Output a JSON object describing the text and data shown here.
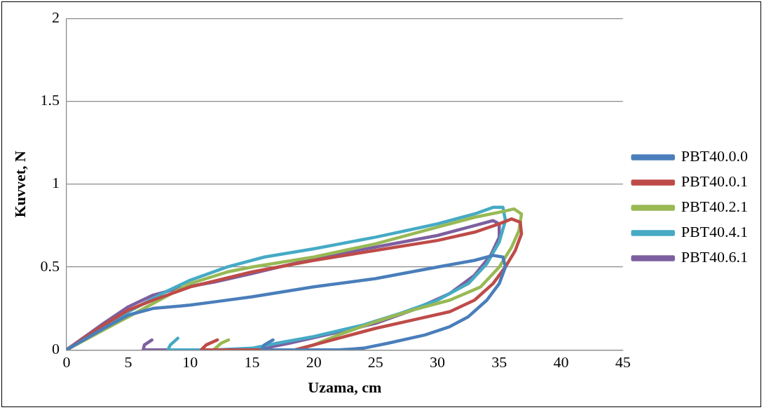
{
  "chart_data": {
    "type": "line",
    "xlabel": "Uzama, cm",
    "ylabel": "Kuvvet, N",
    "xlim": [
      0,
      45
    ],
    "xticks": [
      0,
      5,
      10,
      15,
      20,
      25,
      30,
      35,
      40,
      45
    ],
    "ylim": [
      0,
      2
    ],
    "yticks": [
      0,
      0.5,
      1,
      1.5,
      2
    ],
    "grid": "y",
    "legend": "right",
    "marker": "none",
    "line_style": "solid",
    "series": [
      {
        "name": "PBT40.0.0",
        "color": "#4a7ebb",
        "x": [
          0,
          3,
          5,
          7,
          10,
          12,
          15,
          20,
          25,
          30,
          33,
          34.5,
          35.3,
          35.5,
          35,
          34,
          32.5,
          31,
          29,
          26,
          24,
          22,
          18,
          15.8,
          16,
          16.7
        ],
        "values": [
          0,
          0.13,
          0.21,
          0.25,
          0.27,
          0.29,
          0.32,
          0.38,
          0.43,
          0.5,
          0.54,
          0.57,
          0.56,
          0.5,
          0.4,
          0.3,
          0.2,
          0.14,
          0.09,
          0.04,
          0.01,
          0,
          0,
          0,
          0.03,
          0.06
        ]
      },
      {
        "name": "PBT40.0.1",
        "color": "#be4b48",
        "x": [
          0,
          3,
          5,
          7,
          10,
          15,
          20,
          25,
          30,
          33,
          35,
          36,
          36.7,
          36.8,
          36.3,
          35.5,
          34.5,
          33,
          31,
          28,
          25,
          22,
          20,
          18.5,
          15,
          10.9,
          11.3,
          12.2
        ],
        "values": [
          0,
          0.15,
          0.24,
          0.3,
          0.38,
          0.47,
          0.54,
          0.6,
          0.66,
          0.71,
          0.76,
          0.79,
          0.77,
          0.7,
          0.6,
          0.5,
          0.4,
          0.3,
          0.23,
          0.18,
          0.13,
          0.07,
          0.03,
          0,
          0,
          0,
          0.03,
          0.06
        ]
      },
      {
        "name": "PBT40.2.1",
        "color": "#98b954",
        "x": [
          0,
          3,
          5,
          8,
          10,
          13,
          15,
          20,
          25,
          30,
          33,
          35,
          36.2,
          36.8,
          36.6,
          36,
          35,
          33.5,
          31,
          28,
          25,
          22,
          20,
          18.5,
          15,
          11.9,
          12.5,
          13.1
        ],
        "values": [
          0,
          0.12,
          0.2,
          0.32,
          0.4,
          0.47,
          0.5,
          0.56,
          0.64,
          0.74,
          0.8,
          0.83,
          0.85,
          0.82,
          0.72,
          0.62,
          0.5,
          0.38,
          0.3,
          0.24,
          0.17,
          0.09,
          0.03,
          0,
          0,
          0,
          0.04,
          0.06
        ]
      },
      {
        "name": "PBT40.4.1",
        "color": "#46aac5",
        "x": [
          0,
          3,
          5,
          8,
          10,
          13,
          16,
          20,
          25,
          30,
          33,
          34.5,
          35.3,
          35.5,
          35,
          34,
          32.5,
          30,
          27,
          24,
          20,
          17,
          15,
          12,
          8.2,
          8.4,
          9
        ],
        "values": [
          0,
          0.14,
          0.23,
          0.35,
          0.42,
          0.5,
          0.56,
          0.61,
          0.68,
          0.76,
          0.82,
          0.86,
          0.86,
          0.78,
          0.65,
          0.52,
          0.4,
          0.3,
          0.22,
          0.15,
          0.08,
          0.04,
          0.01,
          0,
          0,
          0.03,
          0.07
        ]
      },
      {
        "name": "PBT40.6.1",
        "color": "#7d5fa0",
        "x": [
          0,
          3,
          5,
          7,
          9,
          12,
          15,
          20,
          25,
          30,
          33,
          34.5,
          35,
          35,
          34.3,
          33,
          31,
          28,
          25,
          21,
          18,
          16,
          13,
          9,
          6.2,
          6.3,
          6.9
        ],
        "values": [
          0,
          0.16,
          0.26,
          0.33,
          0.37,
          0.41,
          0.46,
          0.55,
          0.62,
          0.69,
          0.75,
          0.78,
          0.76,
          0.68,
          0.57,
          0.45,
          0.34,
          0.24,
          0.16,
          0.09,
          0.04,
          0.01,
          0,
          0,
          0,
          0.03,
          0.06
        ]
      }
    ]
  }
}
